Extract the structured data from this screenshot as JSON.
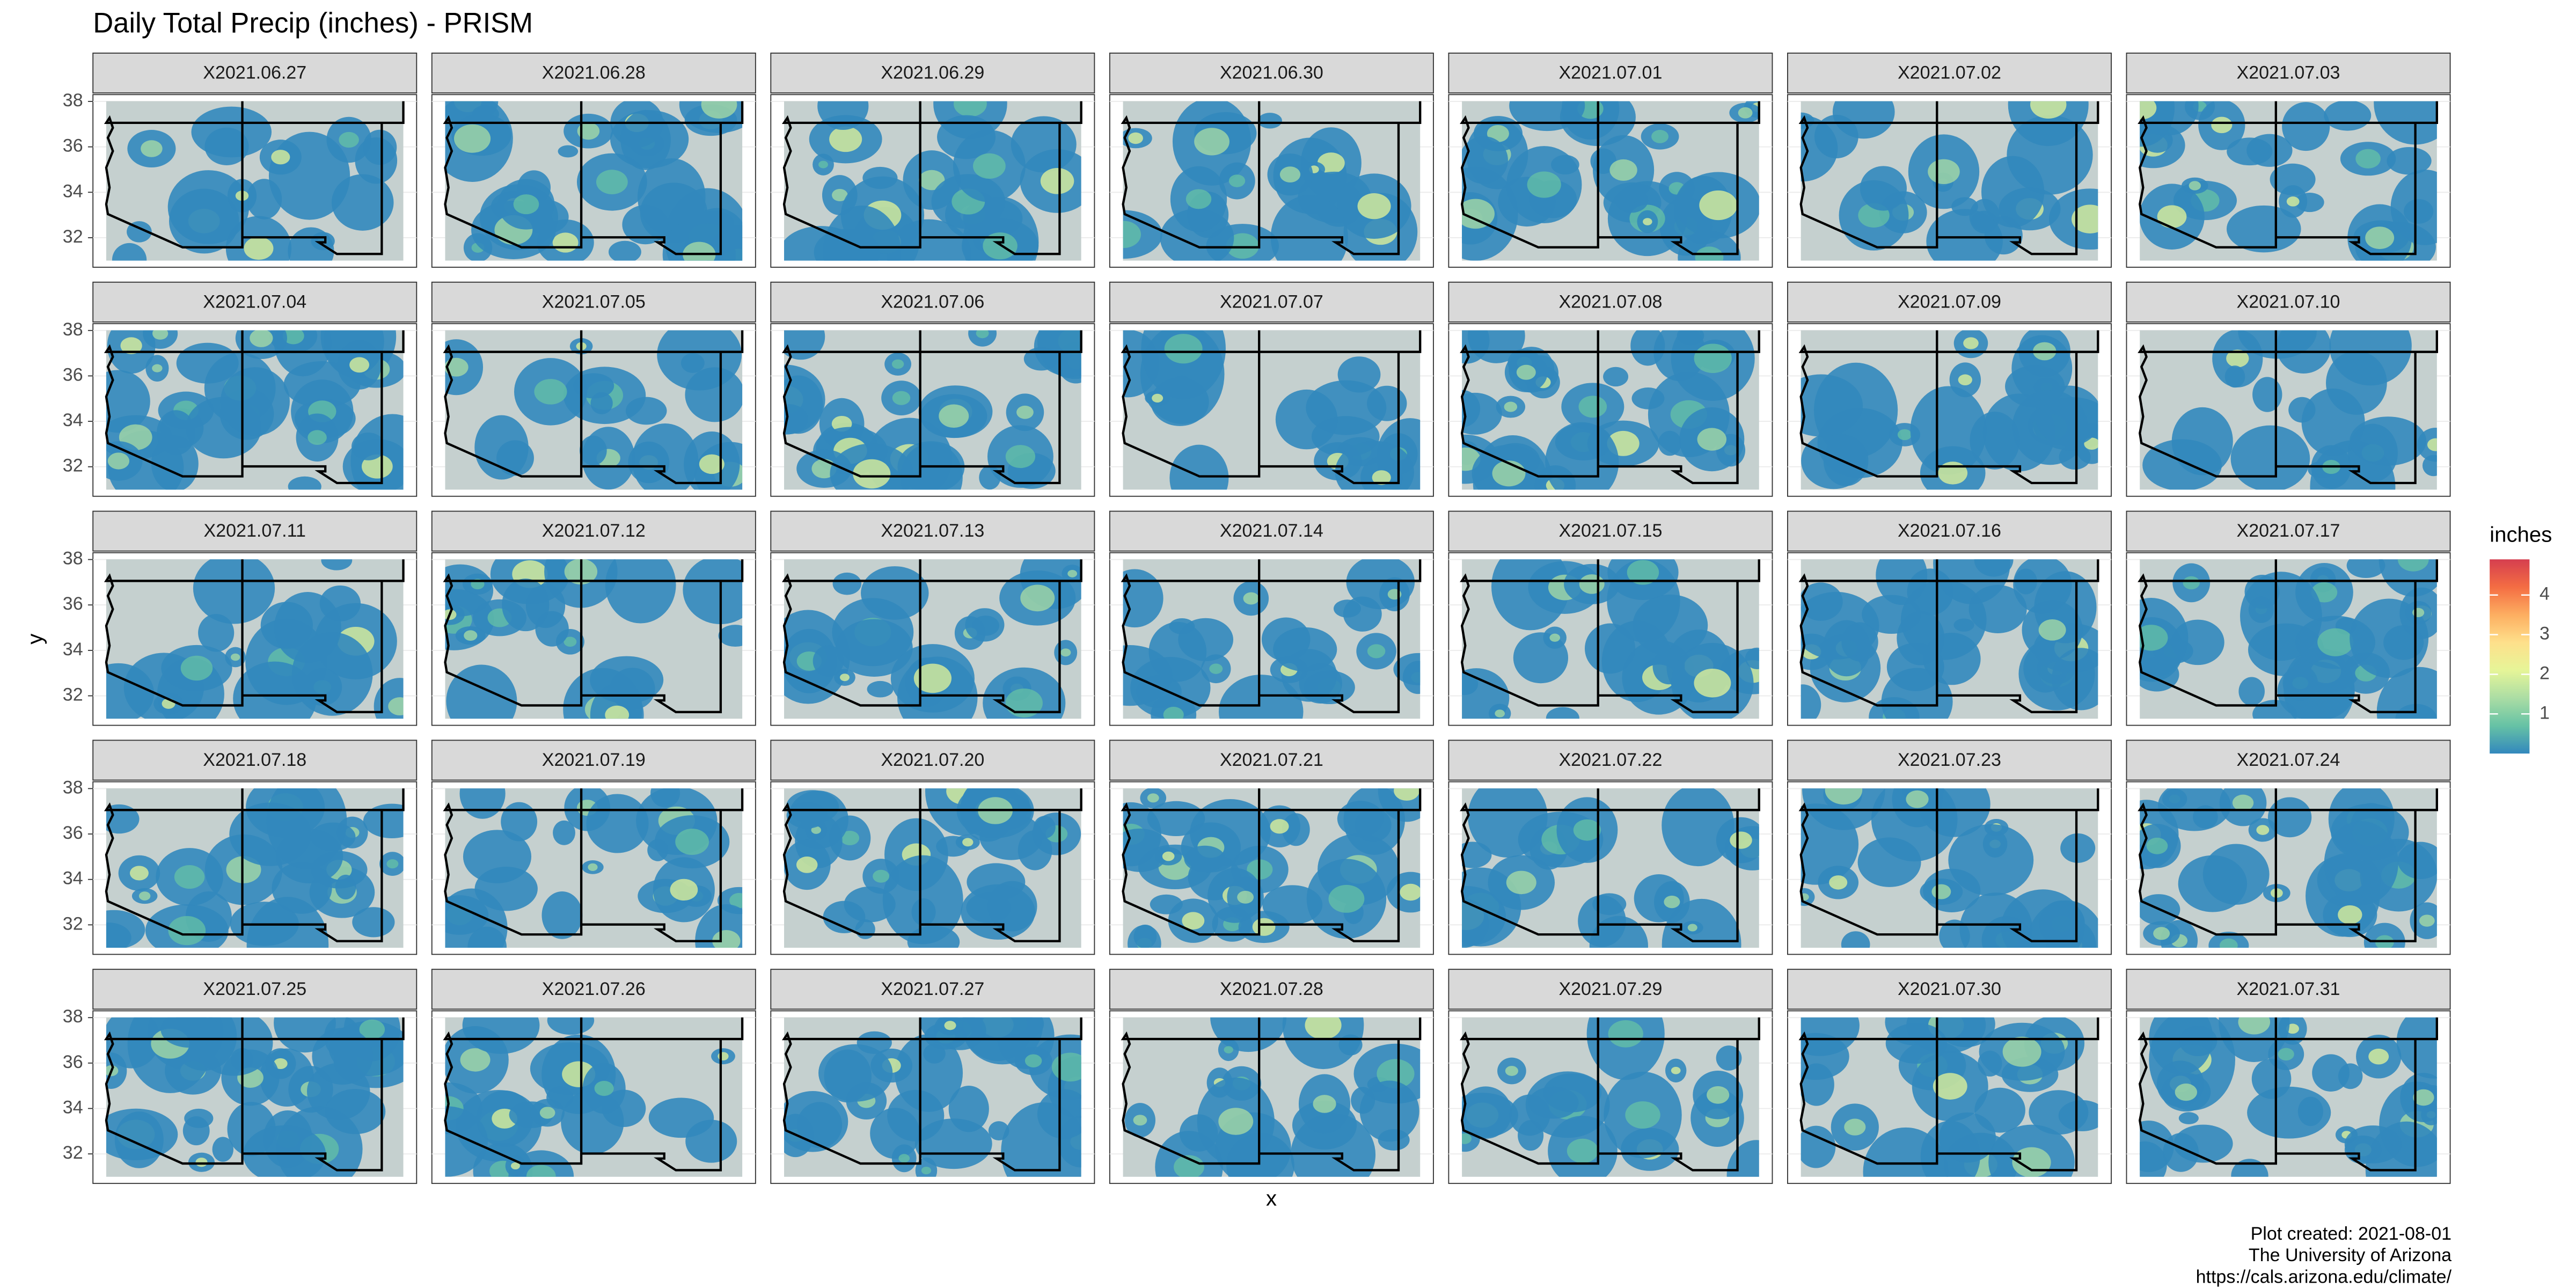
{
  "chart_data": {
    "type": "raster-facet",
    "title": "Daily Total Precip (inches) - PRISM",
    "panels": [
      "X2021.06.27",
      "X2021.06.28",
      "X2021.06.29",
      "X2021.06.30",
      "X2021.07.01",
      "X2021.07.02",
      "X2021.07.03",
      "X2021.07.04",
      "X2021.07.05",
      "X2021.07.06",
      "X2021.07.07",
      "X2021.07.08",
      "X2021.07.09",
      "X2021.07.10",
      "X2021.07.11",
      "X2021.07.12",
      "X2021.07.13",
      "X2021.07.14",
      "X2021.07.15",
      "X2021.07.16",
      "X2021.07.17",
      "X2021.07.18",
      "X2021.07.19",
      "X2021.07.20",
      "X2021.07.21",
      "X2021.07.22",
      "X2021.07.23",
      "X2021.07.24",
      "X2021.07.25",
      "X2021.07.26",
      "X2021.07.27",
      "X2021.07.28",
      "X2021.07.29",
      "X2021.07.30",
      "X2021.07.31"
    ],
    "xlabel": "x",
    "ylabel": "y",
    "ylim": [
      30.7,
      38.3
    ],
    "yticks": [
      32,
      34,
      36,
      38
    ],
    "grid": true,
    "legend": {
      "title": "inches",
      "position": "right",
      "lim": [
        0,
        4.9
      ],
      "ticks": [
        1,
        2,
        3,
        4
      ],
      "colors": [
        "#3288bd",
        "#66c2a5",
        "#abdda4",
        "#e6f598",
        "#fee08b",
        "#fdae61",
        "#f46d43",
        "#d53e4f"
      ]
    },
    "caption": [
      "Plot created: 2021-08-01",
      "The University of Arizona",
      "https://cals.arizona.edu/climate/"
    ]
  }
}
